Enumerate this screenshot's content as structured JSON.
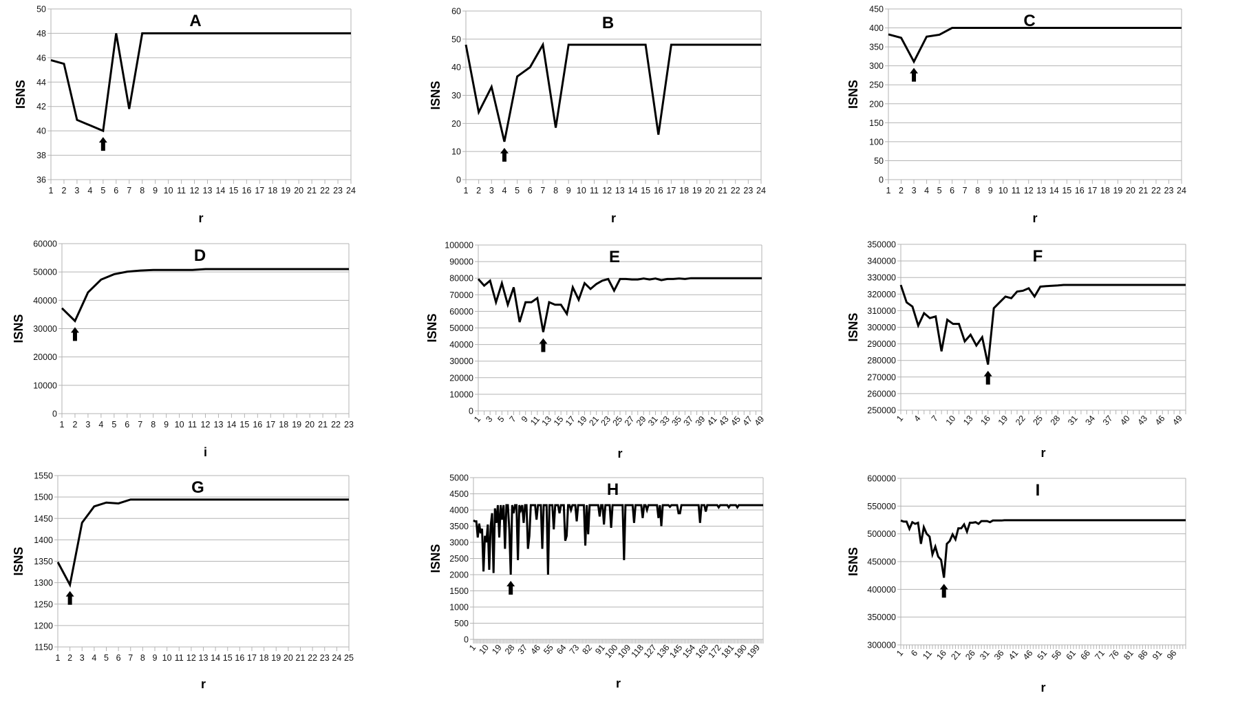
{
  "chart_data": [
    {
      "type": "line",
      "title": "A",
      "xlabel": "r",
      "ylabel": "ISNS",
      "ylim": [
        36,
        50
      ],
      "grid": true,
      "yticks": [
        "36",
        "38",
        "40",
        "42",
        "44",
        "46",
        "48",
        "50"
      ],
      "xticks": [
        "1",
        "2",
        "3",
        "4",
        "5",
        "6",
        "7",
        "8",
        "9",
        "10",
        "11",
        "12",
        "13",
        "14",
        "15",
        "16",
        "17",
        "18",
        "19",
        "20",
        "21",
        "22",
        "23",
        "24"
      ],
      "x_start": 1,
      "arrow_at": 5,
      "values": [
        45.8,
        45.5,
        40.9,
        40.45,
        40,
        48,
        41.8,
        48,
        48,
        48,
        48,
        48,
        48,
        48,
        48,
        48,
        48,
        48,
        48,
        48,
        48,
        48,
        48,
        48
      ]
    },
    {
      "type": "line",
      "title": "B",
      "xlabel": "r",
      "ylabel": "ISNS",
      "ylim": [
        0,
        60
      ],
      "grid": true,
      "yticks": [
        "0",
        "10",
        "20",
        "30",
        "40",
        "50",
        "60"
      ],
      "xticks": [
        "1",
        "2",
        "3",
        "4",
        "5",
        "6",
        "7",
        "8",
        "9",
        "10",
        "11",
        "12",
        "13",
        "14",
        "15",
        "16",
        "17",
        "18",
        "19",
        "20",
        "21",
        "22",
        "23",
        "24"
      ],
      "x_start": 1,
      "arrow_at": 4,
      "values": [
        48,
        24,
        33,
        13.5,
        36.7,
        40,
        48,
        18.5,
        48,
        48,
        48,
        48,
        48,
        48,
        48,
        16,
        48,
        48,
        48,
        48,
        48,
        48,
        48,
        48
      ]
    },
    {
      "type": "line",
      "title": "C",
      "xlabel": "r",
      "ylabel": "ISNS",
      "ylim": [
        0,
        450
      ],
      "grid": true,
      "yticks": [
        "0",
        "50",
        "100",
        "150",
        "200",
        "250",
        "300",
        "350",
        "400",
        "450"
      ],
      "xticks": [
        "1",
        "2",
        "3",
        "4",
        "5",
        "6",
        "7",
        "8",
        "9",
        "10",
        "11",
        "12",
        "13",
        "14",
        "15",
        "16",
        "17",
        "18",
        "19",
        "20",
        "21",
        "22",
        "23",
        "24"
      ],
      "x_start": 1,
      "arrow_at": 3,
      "values": [
        383,
        374,
        311,
        377,
        382,
        400,
        400,
        400,
        400,
        400,
        400,
        400,
        400,
        400,
        400,
        400,
        400,
        400,
        400,
        400,
        400,
        400,
        400,
        400
      ]
    },
    {
      "type": "line",
      "title": "D",
      "xlabel": "i",
      "ylabel": "ISNS",
      "ylim": [
        0,
        60000
      ],
      "grid": true,
      "yticks": [
        "0",
        "10000",
        "20000",
        "30000",
        "40000",
        "50000",
        "60000"
      ],
      "xticks": [
        "1",
        "2",
        "3",
        "4",
        "5",
        "6",
        "7",
        "8",
        "9",
        "10",
        "11",
        "12",
        "13",
        "14",
        "15",
        "16",
        "17",
        "18",
        "19",
        "20",
        "21",
        "22",
        "23"
      ],
      "x_start": 1,
      "arrow_at": 2,
      "values": [
        37200,
        32700,
        42800,
        47300,
        49200,
        50100,
        50500,
        50700,
        50700,
        50700,
        50700,
        51000,
        51000,
        51000,
        51000,
        51000,
        51000,
        51000,
        51000,
        51000,
        51000,
        51000,
        51000
      ]
    },
    {
      "type": "line",
      "title": "E",
      "xlabel": "r",
      "ylabel": "ISNS",
      "ylim": [
        0,
        100000
      ],
      "grid": true,
      "yticks": [
        "0",
        "10000",
        "20000",
        "30000",
        "40000",
        "50000",
        "60000",
        "70000",
        "80000",
        "90000",
        "100000"
      ],
      "xticks": [
        "1",
        "3",
        "5",
        "7",
        "9",
        "11",
        "13",
        "15",
        "17",
        "19",
        "21",
        "23",
        "25",
        "27",
        "29",
        "31",
        "33",
        "35",
        "37",
        "39",
        "41",
        "43",
        "45",
        "47",
        "49"
      ],
      "x_start": 1,
      "arrow_at": 12,
      "values": [
        79500,
        75500,
        78500,
        65500,
        77000,
        64000,
        74500,
        53500,
        65500,
        65500,
        68000,
        47500,
        65500,
        64000,
        64000,
        58500,
        74500,
        67000,
        77000,
        73500,
        76500,
        78500,
        79500,
        72500,
        79500,
        79500,
        79200,
        79200,
        79800,
        79200,
        79800,
        78800,
        79500,
        79500,
        79800,
        79500,
        80000,
        80000,
        80000,
        80000,
        80000,
        80000,
        80000,
        80000,
        80000,
        80000,
        80000,
        80000,
        80000
      ]
    },
    {
      "type": "line",
      "title": "F",
      "xlabel": "r",
      "ylabel": "ISNS",
      "ylim": [
        250000,
        350000
      ],
      "grid": true,
      "yticks": [
        "250000",
        "260000",
        "270000",
        "280000",
        "290000",
        "300000",
        "310000",
        "320000",
        "330000",
        "340000",
        "350000"
      ],
      "xticks": [
        "1",
        "4",
        "7",
        "10",
        "13",
        "16",
        "19",
        "22",
        "25",
        "28",
        "31",
        "34",
        "37",
        "40",
        "43",
        "46",
        "49"
      ],
      "x_start": 1,
      "arrow_at": 16,
      "values": [
        325500,
        315000,
        312500,
        301000,
        308500,
        305500,
        306500,
        285500,
        304500,
        302000,
        302000,
        291500,
        295500,
        289000,
        294000,
        277500,
        311500,
        315000,
        318500,
        317500,
        321500,
        322000,
        323500,
        318500,
        324500,
        324800,
        325000,
        325200,
        325500,
        325500,
        325500,
        325500,
        325500,
        325500,
        325500,
        325500,
        325500,
        325500,
        325500,
        325500,
        325500,
        325500,
        325500,
        325500,
        325500,
        325500,
        325500,
        325500,
        325500,
        325500
      ]
    },
    {
      "type": "line",
      "title": "G",
      "xlabel": "r",
      "ylabel": "ISNS",
      "ylim": [
        1150,
        1550
      ],
      "grid": true,
      "yticks": [
        "1150",
        "1200",
        "1250",
        "1300",
        "1350",
        "1400",
        "1450",
        "1500",
        "1550"
      ],
      "xticks": [
        "1",
        "2",
        "3",
        "4",
        "5",
        "6",
        "7",
        "8",
        "9",
        "10",
        "11",
        "12",
        "13",
        "14",
        "15",
        "16",
        "17",
        "18",
        "19",
        "20",
        "21",
        "22",
        "23",
        "24",
        "25"
      ],
      "x_start": 1,
      "arrow_at": 2,
      "values": [
        1348,
        1295,
        1440,
        1478,
        1487,
        1485,
        1494,
        1494,
        1494,
        1494,
        1494,
        1494,
        1494,
        1494,
        1494,
        1494,
        1494,
        1494,
        1494,
        1494,
        1494,
        1494,
        1494,
        1494,
        1494
      ]
    },
    {
      "type": "line",
      "title": "H",
      "xlabel": "r",
      "ylabel": "ISNS",
      "ylim": [
        0,
        5000
      ],
      "grid": true,
      "yticks": [
        "0",
        "500",
        "1000",
        "1500",
        "2000",
        "2500",
        "3000",
        "3500",
        "4000",
        "4500",
        "5000"
      ],
      "xticks": [
        "1",
        "10",
        "19",
        "28",
        "37",
        "46",
        "55",
        "64",
        "73",
        "82",
        "91",
        "100",
        "109",
        "118",
        "127",
        "136",
        "145",
        "154",
        "163",
        "172",
        "181",
        "190",
        "199"
      ],
      "x_start": 1,
      "arrow_at": 27,
      "values": [
        3680,
        3650,
        3650,
        3150,
        3580,
        3280,
        3420,
        2100,
        3200,
        3000,
        3550,
        2150,
        3500,
        3900,
        2050,
        4050,
        3600,
        4150,
        3150,
        4150,
        3700,
        4150,
        2800,
        4150,
        4150,
        3400,
        2000,
        4150,
        3900,
        4150,
        4150,
        2450,
        4150,
        4000,
        4150,
        3600,
        4150,
        4150,
        2800,
        3200,
        4150,
        4150,
        4150,
        4150,
        3700,
        4150,
        4150,
        4150,
        2800,
        4150,
        4150,
        4150,
        2000,
        4150,
        4150,
        4150,
        3400,
        4150,
        4150,
        4150,
        3900,
        4150,
        4150,
        4150,
        3050,
        3200,
        4150,
        4150,
        4000,
        4150,
        4150,
        4150,
        3650,
        4150,
        4150,
        4150,
        4150,
        4150,
        2900,
        4150,
        3250,
        4150,
        4150,
        4150,
        4150,
        4150,
        4150,
        4150,
        3800,
        4150,
        4150,
        3550,
        4150,
        4150,
        4150,
        4150,
        3450,
        4150,
        4150,
        4150,
        4150,
        4150,
        4150,
        4150,
        4150,
        2450,
        4150,
        4150,
        4150,
        4150,
        4150,
        4150,
        3600,
        4150,
        4150,
        4150,
        4150,
        4150,
        3750,
        4150,
        4150,
        4000,
        4150,
        4150,
        4150,
        4150,
        4150,
        4150,
        4150,
        3750,
        4150,
        3500,
        4150,
        4150,
        4150,
        4150,
        4150,
        4100,
        4150,
        4150,
        4150,
        4150,
        4150,
        3900,
        3900,
        4150,
        4150,
        4150,
        4150,
        4150,
        4150,
        4150,
        4150,
        4150,
        4150,
        4150,
        4150,
        4150,
        3600,
        4150,
        4150,
        4150,
        3950,
        4150,
        4150,
        4150,
        4150,
        4150,
        4150,
        4150,
        4150,
        4080,
        4150,
        4150,
        4150,
        4150,
        4150,
        4150,
        4080,
        4150,
        4150,
        4150,
        4150,
        4150,
        4080,
        4150,
        4150,
        4150,
        4150,
        4150,
        4150,
        4150,
        4150,
        4150,
        4150,
        4150,
        4150,
        4150,
        4150,
        4150,
        4150,
        4150,
        4150
      ]
    },
    {
      "type": "line",
      "title": "I",
      "xlabel": "r",
      "ylabel": "ISNS",
      "ylim": [
        300000,
        600000
      ],
      "grid": true,
      "yticks": [
        "300000",
        "350000",
        "400000",
        "450000",
        "500000",
        "550000",
        "600000"
      ],
      "xticks": [
        "1",
        "6",
        "11",
        "16",
        "21",
        "26",
        "31",
        "36",
        "41",
        "46",
        "51",
        "56",
        "61",
        "66",
        "71",
        "76",
        "81",
        "86",
        "91",
        "96"
      ],
      "x_start": 1,
      "arrow_at": 16,
      "values": [
        524000,
        522000,
        522000,
        509000,
        521000,
        518000,
        520000,
        482000,
        512000,
        500000,
        495000,
        463000,
        477000,
        459000,
        453000,
        421000,
        482000,
        487000,
        499000,
        490000,
        510000,
        510000,
        517000,
        504000,
        520000,
        520000,
        521000,
        518000,
        523000,
        523000,
        523000,
        521000,
        524000,
        524000,
        524000,
        524000,
        524500,
        524500,
        524500,
        524500,
        524500,
        524500,
        524500,
        524500,
        524500,
        524500,
        524500,
        524500,
        524500,
        524500,
        524500,
        524500,
        524500,
        524500,
        524500,
        524500,
        524500,
        524500,
        524500,
        524500,
        524500,
        524500,
        524500,
        524500,
        524500,
        524500,
        524500,
        524500,
        524500,
        524500,
        524500,
        524500,
        524500,
        524500,
        524500,
        524500,
        524500,
        524500,
        524500,
        524500,
        524500,
        524500,
        524500,
        524500,
        524500,
        524500,
        524500,
        524500,
        524500,
        524500,
        524500,
        524500,
        524500,
        524500,
        524500,
        524500,
        524500,
        524500,
        524500,
        524500
      ]
    }
  ],
  "colors": {
    "line": "#000000",
    "grid": "#b3b3b3",
    "arrow": "#000000"
  }
}
